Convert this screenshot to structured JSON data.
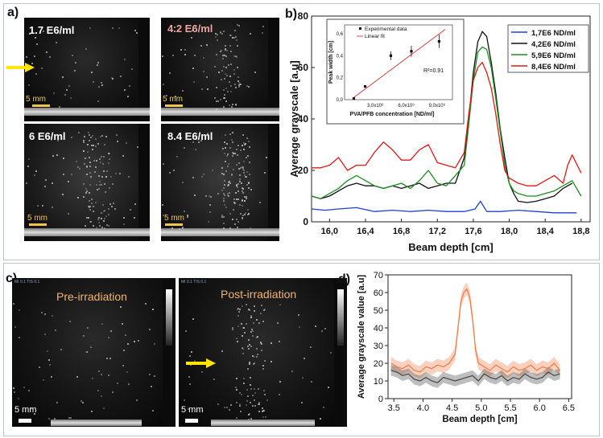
{
  "panel_a": {
    "label": "a)",
    "images": [
      {
        "concentration": "1.7 E6/ml",
        "scale": "5 mm",
        "arrow": true
      },
      {
        "concentration": "4.2 E6/ml",
        "scale": "5 mm",
        "arrow": false
      },
      {
        "concentration": "6 E6/ml",
        "scale": "5 mm",
        "arrow": false
      },
      {
        "concentration": "8.4 E6/ml",
        "scale": "5 mm",
        "arrow": false
      }
    ]
  },
  "panel_c": {
    "label": "c)",
    "images": [
      {
        "caption": "Pre-irradiation",
        "scale": "5 mm",
        "header": "MI 0.1 TIS 0.1"
      },
      {
        "caption": "Post-irradiation",
        "scale": "5 mm",
        "header": "MI 0.1 TIS 0.1"
      }
    ]
  },
  "colors": {
    "arrow": "#ffe600",
    "blue": "#1f3fd6",
    "black": "#111111",
    "green": "#1e8c1e",
    "red": "#e01818",
    "orange": "#ef7b45",
    "gray": "#444444",
    "fit": "#e03030"
  },
  "chart_data": [
    {
      "panel_label": "b)",
      "type": "line",
      "xlabel": "Beam depth [cm]",
      "ylabel": "Average grayscale [a.u]",
      "xlim": [
        15.8,
        18.9
      ],
      "ylim": [
        0,
        80
      ],
      "xticks": [
        "16,0",
        "16,4",
        "16,8",
        "17,2",
        "17,6",
        "18,0",
        "18,4",
        "18,8"
      ],
      "xtick_values": [
        16.0,
        16.4,
        16.8,
        17.2,
        17.6,
        18.0,
        18.4,
        18.8
      ],
      "yticks": [
        0,
        20,
        40,
        60,
        80
      ],
      "legend_position": "top-right",
      "series": [
        {
          "name": "1,7E6 ND/ml",
          "color": "#1f3fd6",
          "x": [
            15.8,
            15.95,
            16.1,
            16.3,
            16.5,
            16.7,
            16.9,
            17.1,
            17.3,
            17.5,
            17.62,
            17.68,
            17.75,
            17.9,
            18.1,
            18.3,
            18.5,
            18.75
          ],
          "y": [
            5,
            4.5,
            5,
            5.5,
            4,
            4.5,
            4,
            4.5,
            4,
            4,
            5,
            8,
            4,
            4,
            4.5,
            4,
            3.5,
            3.5
          ]
        },
        {
          "name": "4,2E6 ND/ml",
          "color": "#111111",
          "x": [
            15.8,
            15.9,
            16.0,
            16.1,
            16.2,
            16.3,
            16.4,
            16.5,
            16.6,
            16.7,
            16.8,
            16.9,
            17.0,
            17.1,
            17.2,
            17.3,
            17.4,
            17.5,
            17.55,
            17.6,
            17.65,
            17.7,
            17.75,
            17.8,
            17.85,
            17.9,
            17.95,
            18.0,
            18.05,
            18.1,
            18.2,
            18.3,
            18.4,
            18.5,
            18.6,
            18.7
          ],
          "y": [
            10,
            9,
            10,
            12,
            14,
            15,
            14,
            14,
            13,
            14,
            13,
            14,
            15,
            13,
            14,
            15,
            15,
            25,
            40,
            58,
            70,
            74,
            72,
            62,
            50,
            36,
            25,
            15,
            11,
            8,
            7.5,
            8,
            9,
            10,
            13,
            15
          ]
        },
        {
          "name": "5,9E6 ND/ml",
          "color": "#1e8c1e",
          "x": [
            15.8,
            15.9,
            16.0,
            16.1,
            16.2,
            16.3,
            16.4,
            16.5,
            16.6,
            16.7,
            16.8,
            16.9,
            17.0,
            17.1,
            17.2,
            17.3,
            17.4,
            17.5,
            17.55,
            17.6,
            17.65,
            17.7,
            17.75,
            17.8,
            17.85,
            17.9,
            17.95,
            18.0,
            18.05,
            18.1,
            18.2,
            18.3,
            18.4,
            18.5,
            18.6,
            18.7,
            18.8
          ],
          "y": [
            10,
            9,
            11,
            13,
            16,
            18,
            16,
            14,
            13,
            14,
            15,
            13,
            16,
            20,
            15,
            14,
            18,
            22,
            38,
            55,
            66,
            68,
            67,
            60,
            48,
            35,
            22,
            15,
            12,
            11,
            10,
            10,
            11,
            12,
            14,
            16,
            10
          ]
        },
        {
          "name": "8,4E6 ND/ml",
          "color": "#e01818",
          "x": [
            15.8,
            15.9,
            16.0,
            16.1,
            16.2,
            16.3,
            16.4,
            16.5,
            16.6,
            16.7,
            16.8,
            16.9,
            17.0,
            17.1,
            17.2,
            17.3,
            17.4,
            17.5,
            17.55,
            17.6,
            17.65,
            17.7,
            17.75,
            17.8,
            17.85,
            17.9,
            17.95,
            18.0,
            18.1,
            18.2,
            18.3,
            18.4,
            18.5,
            18.6,
            18.65,
            18.7,
            18.8
          ],
          "y": [
            21,
            21,
            22,
            25,
            20,
            22,
            22,
            27,
            31,
            28,
            24,
            24,
            28,
            30,
            23,
            22,
            21,
            27,
            42,
            55,
            60,
            62,
            58,
            52,
            42,
            30,
            20,
            17,
            15,
            14,
            14,
            16,
            18,
            15,
            22,
            26,
            19
          ]
        }
      ],
      "inset": {
        "type": "scatter",
        "xlabel": "PVA/PFB concentration [ND/ml]",
        "ylabel": "Peak width [cm]",
        "xticks": [
          "3,0x10⁶",
          "6,0x10⁶",
          "9,0x10⁶"
        ],
        "xtick_values": [
          3,
          6,
          9
        ],
        "yticks": [
          "0,0",
          "0,2",
          "0,4",
          "0,6"
        ],
        "ytick_values": [
          0,
          0.2,
          0.4,
          0.6
        ],
        "xlim": [
          0,
          10.5
        ],
        "ylim": [
          0,
          0.68
        ],
        "legend": [
          "Experimental data",
          "Linear fit"
        ],
        "annotation": "R²=0.91",
        "points": [
          {
            "x": 0.9,
            "y": 0.01,
            "err": 0.0
          },
          {
            "x": 2.0,
            "y": 0.12,
            "err": 0.01
          },
          {
            "x": 4.5,
            "y": 0.4,
            "err": 0.04
          },
          {
            "x": 6.5,
            "y": 0.44,
            "err": 0.05
          },
          {
            "x": 9.2,
            "y": 0.53,
            "err": 0.06
          }
        ],
        "fit": {
          "x": [
            0.9,
            9.8
          ],
          "y": [
            0.02,
            0.64
          ]
        }
      }
    },
    {
      "panel_label": "d)",
      "type": "line",
      "xlabel": "Beam depth [cm]",
      "ylabel": "Average grayscale value [a.u]",
      "xlim": [
        3.4,
        6.55
      ],
      "ylim": [
        0,
        70
      ],
      "xticks": [
        "3.5",
        "4.0",
        "4.5",
        "5.0",
        "5.5",
        "6.0",
        "6.5"
      ],
      "xtick_values": [
        3.5,
        4.0,
        4.5,
        5.0,
        5.5,
        6.0,
        6.5
      ],
      "yticks": [
        0,
        10,
        20,
        30,
        40,
        50,
        60,
        70
      ],
      "series": [
        {
          "name": "Post-irradiation",
          "color": "#ef7b45",
          "x": [
            3.45,
            3.55,
            3.65,
            3.75,
            3.85,
            3.95,
            4.05,
            4.15,
            4.25,
            4.35,
            4.45,
            4.55,
            4.6,
            4.65,
            4.7,
            4.75,
            4.8,
            4.85,
            4.9,
            4.95,
            5.05,
            5.15,
            5.25,
            5.35,
            5.45,
            5.55,
            5.65,
            5.75,
            5.85,
            5.95,
            6.05,
            6.15,
            6.25,
            6.35
          ],
          "y": [
            20,
            18,
            17,
            19,
            16,
            15,
            18,
            17,
            19,
            18,
            20,
            25,
            40,
            55,
            60,
            62,
            58,
            45,
            28,
            20,
            18,
            16,
            19,
            17,
            15,
            18,
            16,
            17,
            19,
            16,
            18,
            17,
            20,
            16
          ],
          "band": 3.5
        },
        {
          "name": "Pre-irradiation",
          "color": "#444444",
          "x": [
            3.45,
            3.55,
            3.65,
            3.75,
            3.85,
            3.95,
            4.05,
            4.15,
            4.25,
            4.35,
            4.45,
            4.55,
            4.65,
            4.75,
            4.85,
            4.95,
            5.05,
            5.15,
            5.25,
            5.35,
            5.45,
            5.55,
            5.65,
            5.75,
            5.85,
            5.95,
            6.05,
            6.15,
            6.25,
            6.35
          ],
          "y": [
            16,
            15,
            13,
            14,
            11,
            10,
            12,
            10,
            9,
            12,
            11,
            10,
            11,
            12,
            13,
            10,
            14,
            12,
            11,
            13,
            10,
            12,
            11,
            14,
            12,
            11,
            12,
            15,
            13,
            14
          ],
          "band": 3
        }
      ]
    }
  ]
}
